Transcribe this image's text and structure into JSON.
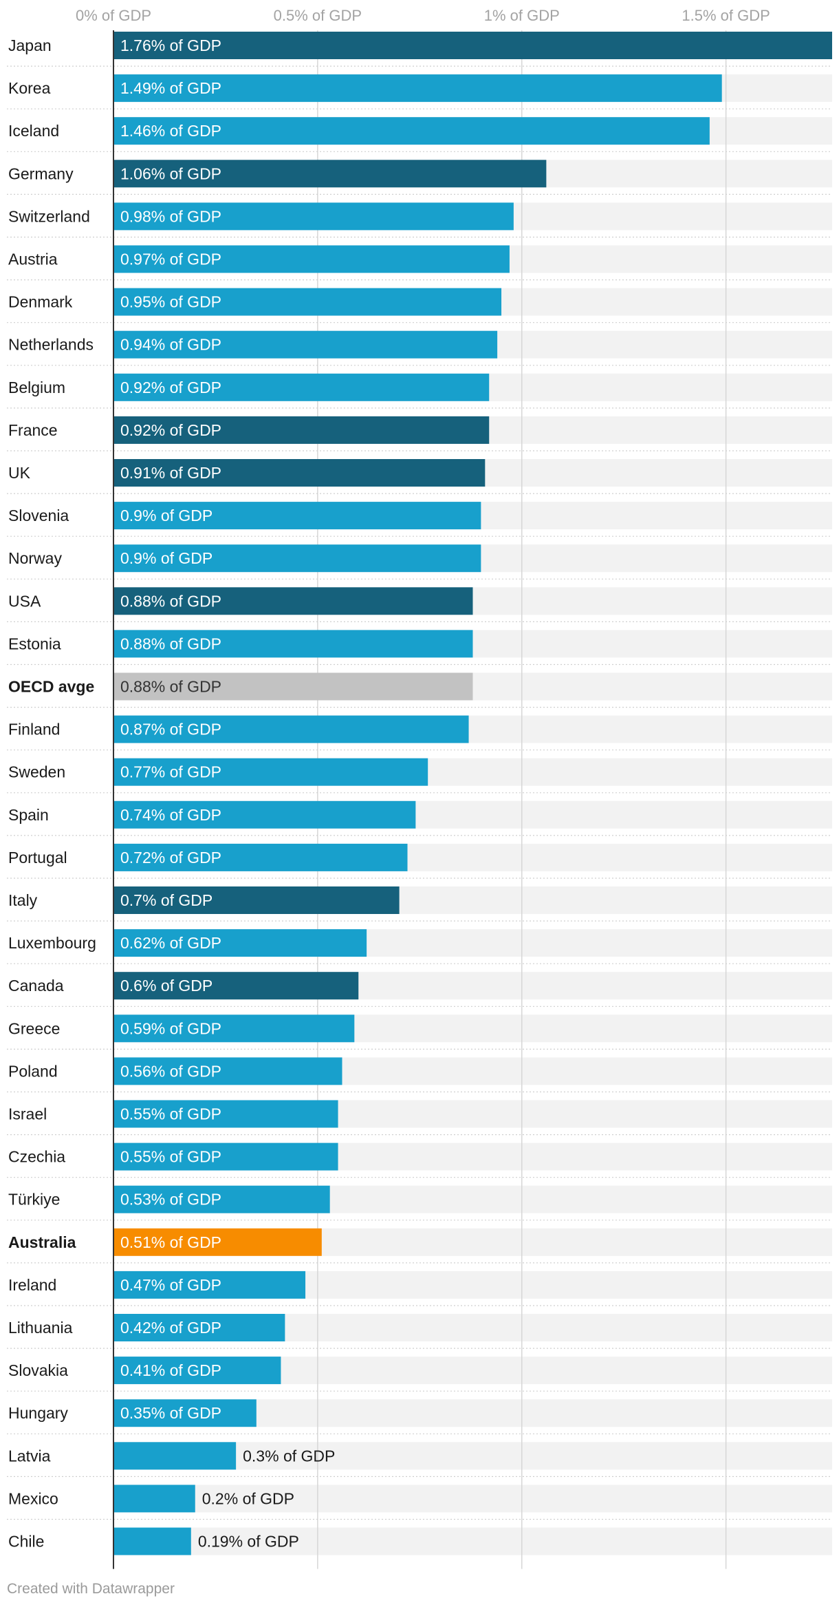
{
  "chart_data": {
    "type": "bar",
    "orientation": "horizontal",
    "title": "",
    "xlabel": "",
    "ylabel": "",
    "xlim": [
      0,
      1.76
    ],
    "grid": true,
    "value_suffix": "% of GDP",
    "ticks": [
      {
        "value": 0,
        "label": "0% of GDP"
      },
      {
        "value": 0.5,
        "label": "0.5% of GDP"
      },
      {
        "value": 1,
        "label": "1% of GDP"
      },
      {
        "value": 1.5,
        "label": "1.5% of GDP"
      }
    ],
    "colors": {
      "default": "#18a0cc",
      "dark": "#16617c",
      "average": "#c2c2c2",
      "highlight": "#f78c00",
      "track": "#f2f2f2"
    },
    "categories": [
      "Japan",
      "Korea",
      "Iceland",
      "Germany",
      "Switzerland",
      "Austria",
      "Denmark",
      "Netherlands",
      "Belgium",
      "France",
      "UK",
      "Slovenia",
      "Norway",
      "USA",
      "Estonia",
      "OECD avge",
      "Finland",
      "Sweden",
      "Spain",
      "Portugal",
      "Italy",
      "Luxembourg",
      "Canada",
      "Greece",
      "Poland",
      "Israel",
      "Czechia",
      "Türkiye",
      "Australia",
      "Ireland",
      "Lithuania",
      "Slovakia",
      "Hungary",
      "Latvia",
      "Mexico",
      "Chile"
    ],
    "values": [
      1.76,
      1.49,
      1.46,
      1.06,
      0.98,
      0.97,
      0.95,
      0.94,
      0.92,
      0.92,
      0.91,
      0.9,
      0.9,
      0.88,
      0.88,
      0.88,
      0.87,
      0.77,
      0.74,
      0.72,
      0.7,
      0.62,
      0.6,
      0.59,
      0.56,
      0.55,
      0.55,
      0.53,
      0.51,
      0.47,
      0.42,
      0.41,
      0.35,
      0.3,
      0.2,
      0.19
    ],
    "value_labels": [
      "1.76% of GDP",
      "1.49% of GDP",
      "1.46% of GDP",
      "1.06% of GDP",
      "0.98% of GDP",
      "0.97% of GDP",
      "0.95% of GDP",
      "0.94% of GDP",
      "0.92% of GDP",
      "0.92% of GDP",
      "0.91% of GDP",
      "0.9% of GDP",
      "0.9% of GDP",
      "0.88% of GDP",
      "0.88% of GDP",
      "0.88% of GDP",
      "0.87% of GDP",
      "0.77% of GDP",
      "0.74% of GDP",
      "0.72% of GDP",
      "0.7% of GDP",
      "0.62% of GDP",
      "0.6% of GDP",
      "0.59% of GDP",
      "0.56% of GDP",
      "0.55% of GDP",
      "0.55% of GDP",
      "0.53% of GDP",
      "0.51% of GDP",
      "0.47% of GDP",
      "0.42% of GDP",
      "0.41% of GDP",
      "0.35% of GDP",
      "0.3% of GDP",
      "0.2% of GDP",
      "0.19% of GDP"
    ],
    "bar_color_keys": [
      "dark",
      "default",
      "default",
      "dark",
      "default",
      "default",
      "default",
      "default",
      "default",
      "dark",
      "dark",
      "default",
      "default",
      "dark",
      "default",
      "average",
      "default",
      "default",
      "default",
      "default",
      "dark",
      "default",
      "dark",
      "default",
      "default",
      "default",
      "default",
      "default",
      "highlight",
      "default",
      "default",
      "default",
      "default",
      "default",
      "default",
      "default"
    ],
    "bold_labels": [
      "OECD avge",
      "Australia"
    ]
  },
  "footer": {
    "credit": "Created with Datawrapper"
  }
}
